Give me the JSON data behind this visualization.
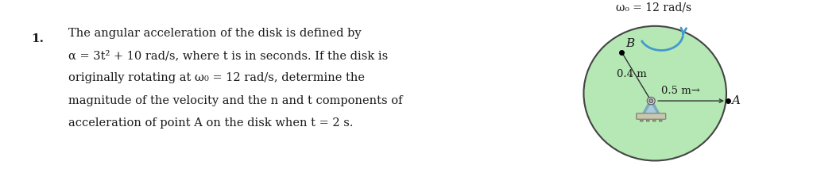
{
  "number_label": "1.",
  "text_line1": "The angular acceleration of the disk is defined by",
  "text_line2": "α = 3t² + 10 rad/s, where t is in seconds. If the disk is",
  "text_line3": "originally rotating at ω₀ = 12 rad/s, determine the",
  "text_line4": "magnitude of the velocity and the n and t components of",
  "text_line5": "acceleration of point A on the disk when t = 2 s.",
  "omega_label": "ω₀ = 12 rad/s",
  "disk_color": "#b5e8b5",
  "disk_edge_color": "#444444",
  "label_B": "B",
  "label_A": "A",
  "dim_04": "0.4 m",
  "dim_05": "0.5 m→",
  "arrow_color": "#4499cc",
  "bg_color": "#ffffff",
  "text_color": "#1a1a1a",
  "hub_body_color": "#7faabb",
  "hub_base_color": "#c8c8b0",
  "hub_base_edge": "#888877"
}
